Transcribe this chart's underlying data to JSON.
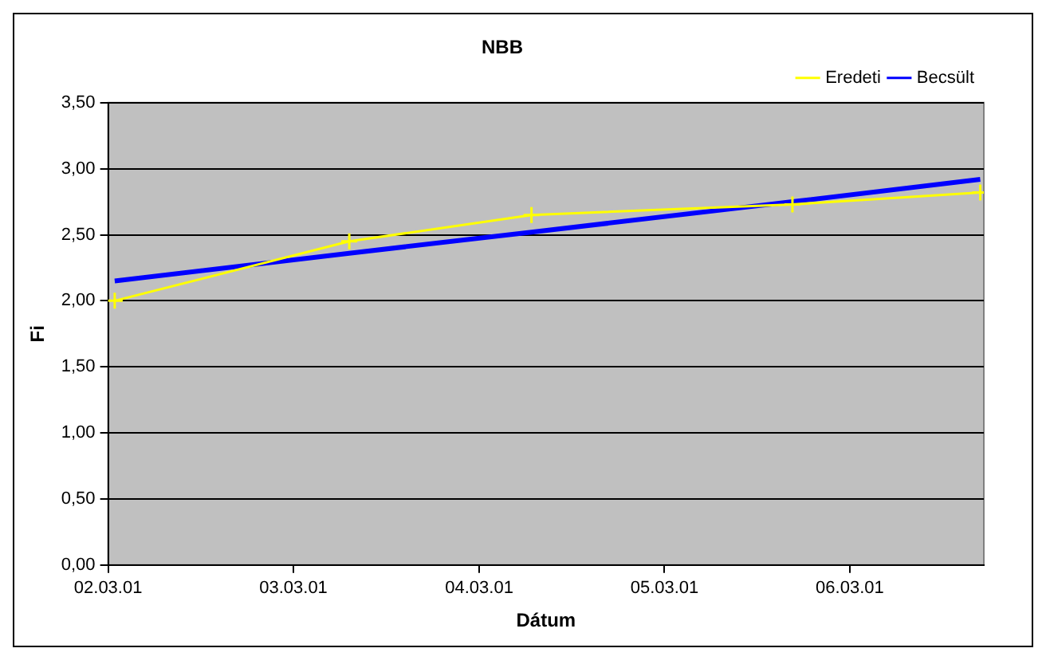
{
  "chart_data": {
    "type": "line",
    "title": "NBB",
    "xlabel": "Dátum",
    "ylabel": "Fi",
    "xlim": [
      "2002-03-01",
      "2006-11-20"
    ],
    "xticks": [
      {
        "value": "2002-03-01",
        "label": "02.03.01"
      },
      {
        "value": "2003-03-01",
        "label": "03.03.01"
      },
      {
        "value": "2004-03-01",
        "label": "04.03.01"
      },
      {
        "value": "2005-03-01",
        "label": "05.03.01"
      },
      {
        "value": "2006-03-01",
        "label": "06.03.01"
      }
    ],
    "ylim": [
      0,
      3.5
    ],
    "yticks": [
      {
        "value": 0,
        "label": "0,00"
      },
      {
        "value": 0.5,
        "label": "0,50"
      },
      {
        "value": 1,
        "label": "1,00"
      },
      {
        "value": 1.5,
        "label": "1,50"
      },
      {
        "value": 2,
        "label": "2,00"
      },
      {
        "value": 2.5,
        "label": "2,50"
      },
      {
        "value": 3,
        "label": "3,00"
      },
      {
        "value": 3.5,
        "label": "3,50"
      }
    ],
    "x": [
      "2002-03-14",
      "2003-06-19",
      "2004-06-12",
      "2005-11-08",
      "2006-11-13"
    ],
    "series": [
      {
        "name": "Eredeti",
        "color": "#ffff00",
        "values": [
          2.0,
          2.45,
          2.65,
          2.73,
          2.82
        ],
        "marker": "cross"
      },
      {
        "name": "Becsült",
        "color": "#0000ff",
        "values": [
          2.15,
          2.36,
          2.52,
          2.75,
          2.92
        ],
        "marker": "none"
      }
    ],
    "grid": "y",
    "legend": "top right",
    "line_style": "solid"
  }
}
